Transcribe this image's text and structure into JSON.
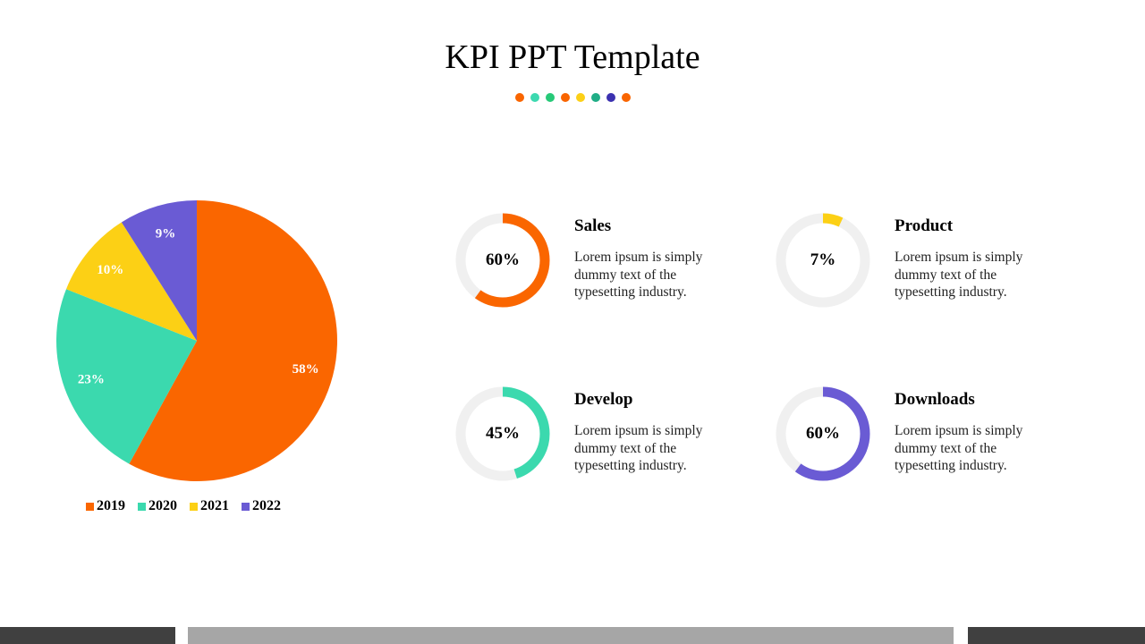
{
  "title": "KPI PPT Template",
  "title_dots": [
    "#f96500",
    "#3dd9b0",
    "#27c978",
    "#f96500",
    "#fcd017",
    "#20ad86",
    "#3b31b0",
    "#f96500"
  ],
  "chart_data": {
    "type": "pie",
    "categories": [
      "2019",
      "2020",
      "2021",
      "2022"
    ],
    "values": [
      58,
      23,
      10,
      9
    ],
    "data_labels": [
      "58%",
      "23%",
      "10%",
      "9%"
    ],
    "colors": [
      "#fa6600",
      "#3bd9ae",
      "#fcd015",
      "#6a5bd4"
    ],
    "legend_position": "bottom"
  },
  "kpis": [
    {
      "name": "Sales",
      "percent": "60%",
      "value": 60,
      "color": "#fa6600",
      "text": "Lorem ipsum is simply dummy text of the typesetting industry."
    },
    {
      "name": "Product",
      "percent": "7%",
      "value": 7,
      "color": "#fcd015",
      "text": "Lorem ipsum is simply dummy text of the typesetting industry."
    },
    {
      "name": "Develop",
      "percent": "45%",
      "value": 45,
      "color": "#3bd9ae",
      "text": "Lorem ipsum is simply dummy text of the typesetting industry."
    },
    {
      "name": "Downloads",
      "percent": "60%",
      "value": 60,
      "color": "#6a5bd4",
      "text": "Lorem ipsum is simply dummy text of the typesetting industry."
    }
  ],
  "footer_colors": [
    "#404040",
    "#a6a6a6",
    "#404040"
  ]
}
